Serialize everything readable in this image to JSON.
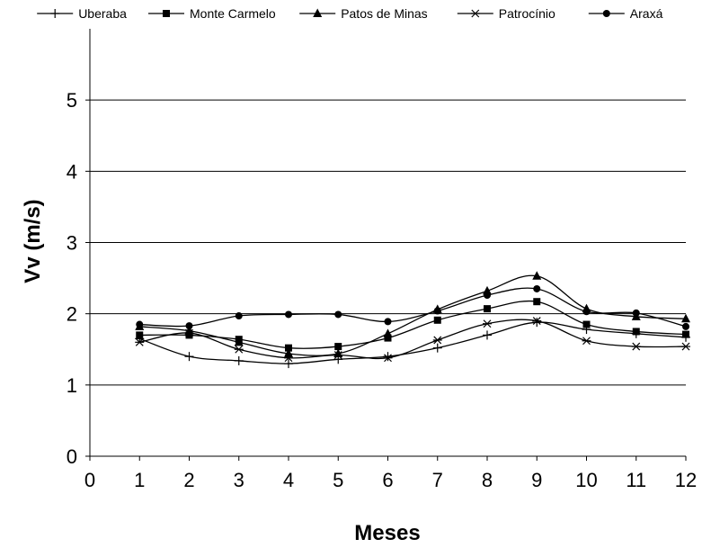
{
  "chart_data": {
    "type": "line",
    "title": "",
    "xlabel": "Meses",
    "ylabel": "Vv (m/s)",
    "xlim": [
      0,
      12
    ],
    "ylim": [
      0,
      6
    ],
    "x_ticks": [
      0,
      1,
      2,
      3,
      4,
      5,
      6,
      7,
      8,
      9,
      10,
      11,
      12
    ],
    "y_ticks": [
      0,
      1,
      2,
      3,
      4,
      5
    ],
    "grid": "horizontal",
    "legend_position": "top",
    "x": [
      1,
      2,
      3,
      4,
      5,
      6,
      7,
      8,
      9,
      10,
      11,
      12
    ],
    "series": [
      {
        "name": "Uberaba",
        "marker": "plus",
        "color": "#000000",
        "values": [
          1.65,
          1.4,
          1.34,
          1.3,
          1.36,
          1.4,
          1.52,
          1.7,
          1.88,
          1.78,
          1.72,
          1.67
        ]
      },
      {
        "name": "Monte Carmelo",
        "marker": "square",
        "color": "#000000",
        "values": [
          1.7,
          1.7,
          1.64,
          1.52,
          1.54,
          1.66,
          1.91,
          2.07,
          2.17,
          1.85,
          1.75,
          1.71
        ]
      },
      {
        "name": "Patos de Minas",
        "marker": "triangle",
        "color": "#000000",
        "values": [
          1.82,
          1.76,
          1.6,
          1.44,
          1.44,
          1.72,
          2.06,
          2.32,
          2.53,
          2.07,
          1.96,
          1.93
        ]
      },
      {
        "name": "Patrocínio",
        "marker": "asterisk",
        "color": "#000000",
        "values": [
          1.6,
          1.73,
          1.5,
          1.38,
          1.42,
          1.38,
          1.63,
          1.86,
          1.9,
          1.62,
          1.54,
          1.54
        ]
      },
      {
        "name": "Araxá",
        "marker": "circle",
        "color": "#000000",
        "values": [
          1.85,
          1.83,
          1.97,
          1.99,
          1.99,
          1.89,
          2.04,
          2.26,
          2.35,
          2.03,
          2.01,
          1.82
        ]
      }
    ]
  }
}
